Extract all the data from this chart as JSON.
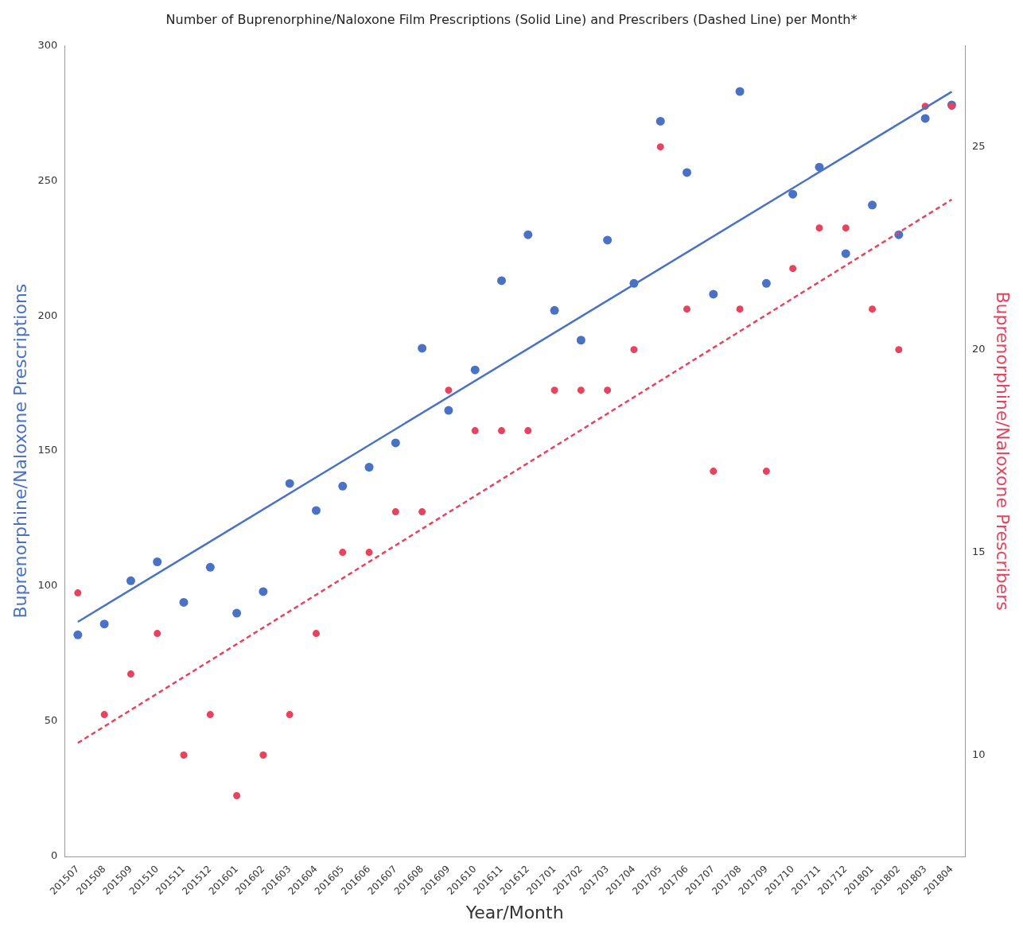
{
  "chart_data": {
    "type": "scatter",
    "title": "Number of Buprenorphine/Naloxone Film Prescriptions (Solid Line) and Prescribers (Dashed Line) per Month*",
    "xlabel": "Year/Month",
    "ylabel": "Buprenorphine/Naloxone Prescriptions",
    "y2label": "Buprenorphine/Naloxone Prescribers",
    "categories": [
      "201507",
      "201508",
      "201509",
      "201510",
      "201511",
      "201512",
      "201601",
      "201602",
      "201603",
      "201604",
      "201605",
      "201606",
      "201607",
      "201608",
      "201609",
      "201610",
      "201611",
      "201612",
      "201701",
      "201702",
      "201703",
      "201704",
      "201705",
      "201706",
      "201707",
      "201708",
      "201709",
      "201710",
      "201711",
      "201712",
      "201801",
      "201802",
      "201803",
      "201804"
    ],
    "series": [
      {
        "type": "scatter",
        "color": "#4a72c4",
        "marker": "circle",
        "values": [
          82,
          86,
          102,
          109,
          94,
          107,
          90,
          98,
          138,
          128,
          137,
          144,
          153,
          188,
          165,
          180,
          213,
          230,
          202,
          191,
          228,
          212,
          272,
          253,
          208,
          283,
          212,
          245,
          255,
          223,
          241,
          230,
          273,
          278
        ]
      },
      {
        "type": "scatter",
        "color": "#e8435e",
        "marker": "circle",
        "axis": "y2",
        "values": [
          14,
          11,
          12,
          13,
          10,
          11,
          9,
          10,
          11,
          13,
          15,
          15,
          16,
          16,
          19,
          18,
          18,
          18,
          19,
          19,
          19,
          20,
          25,
          21,
          17,
          21,
          17,
          22,
          23,
          23,
          21,
          20,
          26,
          26
        ]
      },
      {
        "type": "line",
        "color": "#4a72c4",
        "marker": "none",
        "line_style": "solid",
        "x": [
          "201507",
          "201804"
        ],
        "values": [
          86.8,
          282.9
        ]
      },
      {
        "type": "line",
        "color": "#e8435e",
        "marker": "none",
        "line_style": "dashed",
        "axis": "y2",
        "x": [
          "201507",
          "201804"
        ],
        "values": [
          10.3,
          23.7
        ]
      }
    ],
    "ylim": [
      0,
      300
    ],
    "yticks": [
      0,
      50,
      100,
      150,
      200,
      250,
      300
    ],
    "y2lim": [
      7.5,
      27.5
    ],
    "y2ticks": [
      10,
      15,
      20,
      25
    ],
    "grid": false,
    "legend": false
  }
}
